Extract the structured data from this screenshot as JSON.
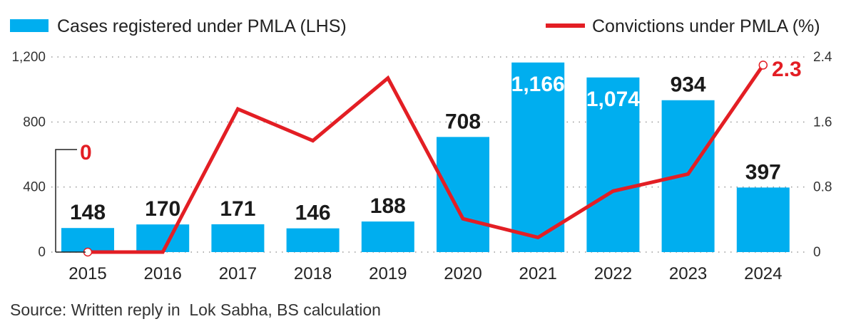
{
  "chart_data": {
    "type": "bar+line",
    "categories": [
      "2015",
      "2016",
      "2017",
      "2018",
      "2019",
      "2020",
      "2021",
      "2022",
      "2023",
      "2024"
    ],
    "series": [
      {
        "name": "Cases registered under PMLA (LHS)",
        "type": "bar",
        "axis": "left",
        "color": "#00aeef",
        "values": [
          148,
          170,
          171,
          146,
          188,
          708,
          1166,
          1074,
          934,
          397
        ],
        "labels": [
          "148",
          "170",
          "171",
          "146",
          "188",
          "708",
          "1,166",
          "1,074",
          "934",
          "397"
        ]
      },
      {
        "name": "Convictions under PMLA (%)",
        "type": "line",
        "axis": "right",
        "color": "#e31e24",
        "values": [
          0,
          0,
          1.76,
          1.37,
          2.14,
          0.41,
          0.18,
          0.75,
          0.96,
          2.3
        ],
        "annotations": [
          {
            "category": "2015",
            "label": "0"
          },
          {
            "category": "2024",
            "label": "2.3"
          }
        ]
      }
    ],
    "left_axis": {
      "ylim": [
        0,
        1200
      ],
      "ticks": [
        "0",
        "400",
        "800",
        "1,200"
      ],
      "tick_values": [
        0,
        400,
        800,
        1200
      ]
    },
    "right_axis": {
      "ylim": [
        0,
        2.4
      ],
      "ticks": [
        "0",
        "0.8",
        "1.6",
        "2.4"
      ],
      "tick_values": [
        0,
        0.8,
        1.6,
        2.4
      ]
    },
    "grid": "horizontal dotted",
    "legend": "top",
    "source": "Source: Written reply in  Lok Sabha, BS calculation"
  }
}
